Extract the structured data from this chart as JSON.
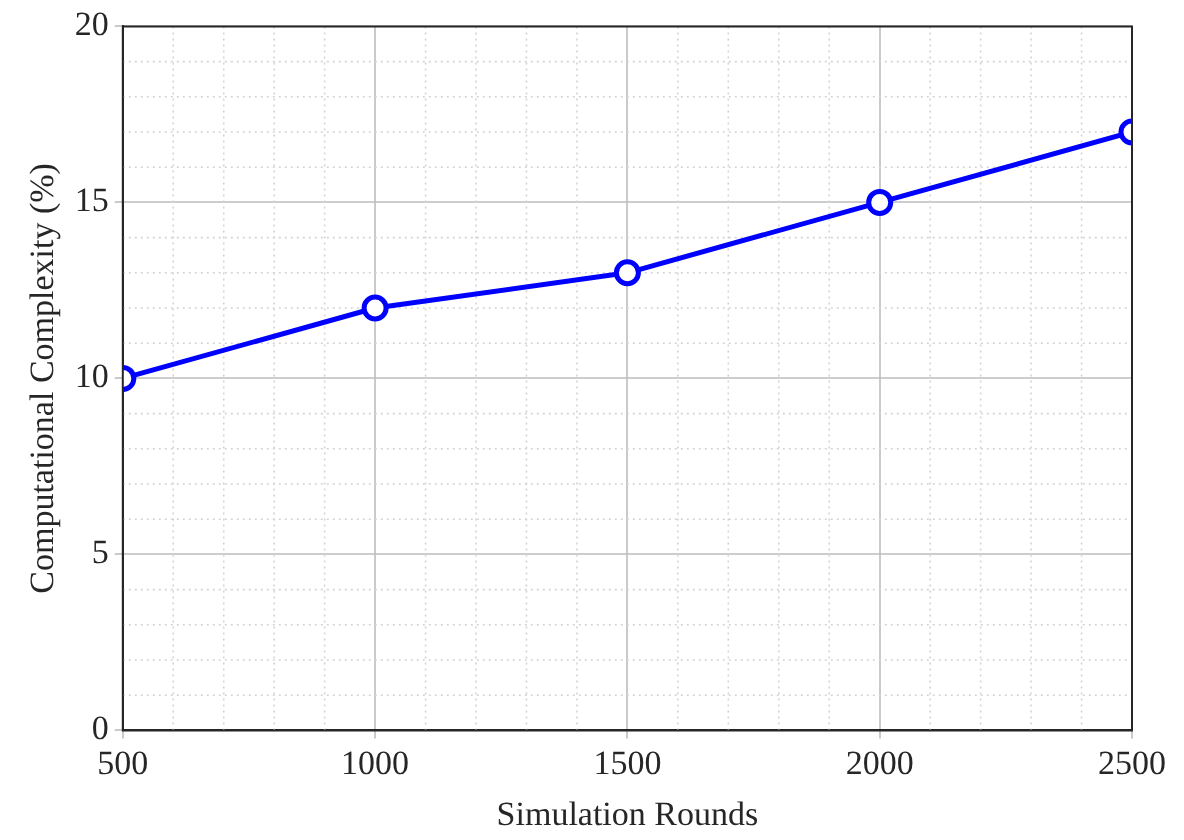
{
  "chart_data": {
    "type": "line",
    "xlabel": "Simulation Rounds",
    "ylabel": "Computational Complexity (%)",
    "x": [
      500,
      1000,
      1500,
      2000,
      2500
    ],
    "series": [
      {
        "color": "#0000ff",
        "values": [
          10,
          12,
          13,
          15,
          17
        ]
      }
    ],
    "xlim": [
      500,
      2500
    ],
    "xticks": [
      500,
      1000,
      1500,
      2000,
      2500
    ],
    "ylim": [
      0,
      20
    ],
    "yticks": [
      0,
      5,
      10,
      15,
      20
    ],
    "grid": true,
    "marker": "circle",
    "line_style": "solid",
    "legend": false
  }
}
